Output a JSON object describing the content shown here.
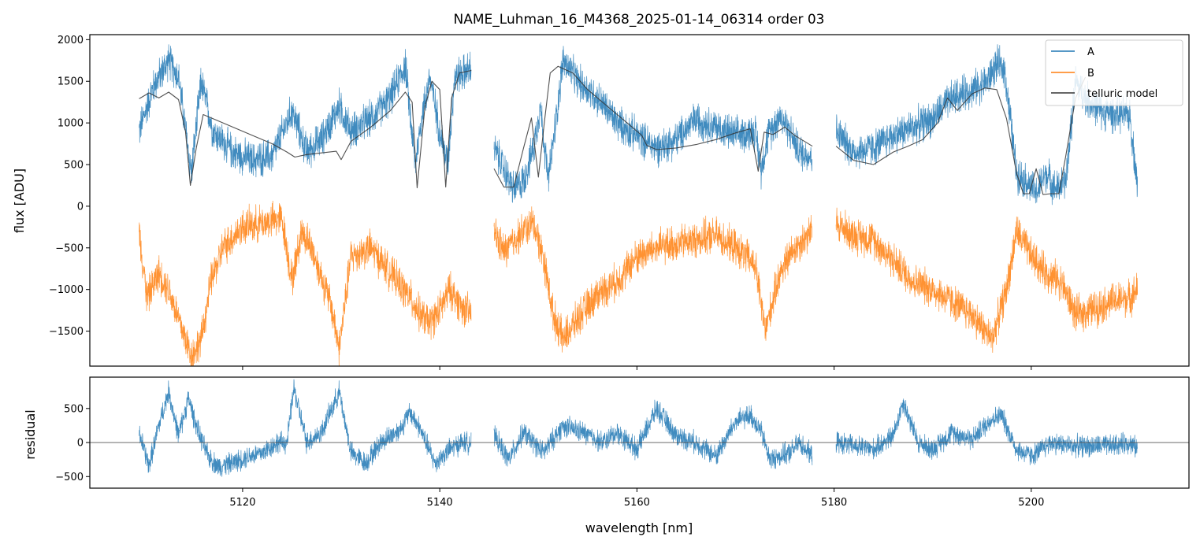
{
  "chart_data": {
    "type": "line",
    "title": "NAME_Luhman_16_M4368_2025-01-14_06314  order 03",
    "xlabel": "wavelength [nm]",
    "xlim": [
      5104.5,
      5216.0
    ],
    "x_ticks": [
      5120,
      5140,
      5160,
      5180,
      5200
    ],
    "segments": [
      [
        5109.5,
        5143.2
      ],
      [
        5145.5,
        5177.8
      ],
      [
        5180.2,
        5210.8
      ]
    ],
    "colors": {
      "A": "#1f77b4",
      "B": "#ff7f0e",
      "telluric": "#333333",
      "zero_line": "#555555"
    },
    "panels": [
      {
        "id": "flux",
        "ylabel": "flux [ADU]",
        "ylim": [
          -1920,
          2060
        ],
        "y_ticks": [
          -1500,
          -1000,
          -500,
          0,
          500,
          1000,
          1500,
          2000
        ],
        "legend": {
          "position": "top-right",
          "entries": [
            "A",
            "B",
            "telluric model"
          ]
        },
        "series": [
          {
            "name": "A",
            "x": [
              5109.5,
              5111,
              5112.5,
              5113.5,
              5114.8,
              5115.8,
              5117,
              5119,
              5121,
              5123,
              5125,
              5126.5,
              5128,
              5129.8,
              5131,
              5133,
              5135,
              5136.5,
              5137.5,
              5138.2,
              5139,
              5140,
              5140.8,
              5141.5,
              5142.3,
              5143.2,
              5145.5,
              5146.5,
              5147.5,
              5148.5,
              5149.5,
              5150.2,
              5151,
              5151.8,
              5152.5,
              5154,
              5156,
              5158,
              5160,
              5162,
              5164,
              5166,
              5168,
              5170,
              5172,
              5172.6,
              5173.3,
              5174.5,
              5175.5,
              5176.5,
              5177.8,
              5180.2,
              5182,
              5184,
              5186,
              5188,
              5190,
              5192,
              5194,
              5195.5,
              5196.5,
              5197.3,
              5198.5,
              5199.5,
              5200.5,
              5201.5,
              5202.5,
              5203.5,
              5204.5,
              5205.5,
              5207,
              5208.5,
              5210,
              5210.8
            ],
            "y": [
              900,
              1450,
              1750,
              1550,
              400,
              1500,
              900,
              650,
              550,
              600,
              1150,
              650,
              800,
              1200,
              900,
              1050,
              1300,
              1700,
              500,
              1100,
              1550,
              900,
              500,
              1550,
              1600,
              1650,
              700,
              450,
              200,
              300,
              700,
              1200,
              300,
              1050,
              1750,
              1500,
              1300,
              1000,
              850,
              700,
              800,
              1050,
              950,
              850,
              900,
              450,
              850,
              1100,
              900,
              650,
              600,
              900,
              650,
              700,
              850,
              950,
              1050,
              1300,
              1400,
              1500,
              1700,
              1650,
              400,
              300,
              150,
              400,
              200,
              300,
              1500,
              1300,
              1150,
              1100,
              1100,
              200
            ]
          },
          {
            "name": "B",
            "x": [
              5109.5,
              5110.3,
              5111.5,
              5112.5,
              5113.5,
              5114.8,
              5115.8,
              5116.8,
              5118,
              5120,
              5122,
              5124,
              5125,
              5126,
              5127,
              5129,
              5129.8,
              5131,
              5133,
              5135,
              5137,
              5138,
              5139,
              5140,
              5141,
              5142.2,
              5143.2,
              5145.5,
              5146.5,
              5148,
              5149.5,
              5150.5,
              5151.5,
              5152.5,
              5154,
              5156,
              5158,
              5160,
              5162,
              5164,
              5166,
              5168,
              5170,
              5172,
              5173,
              5174.5,
              5176,
              5177.8,
              5180.2,
              5182,
              5184,
              5186,
              5188,
              5190,
              5192,
              5194,
              5196,
              5197.5,
              5198.5,
              5200,
              5201.5,
              5203,
              5204.5,
              5206,
              5208,
              5210,
              5210.8
            ],
            "y": [
              -300,
              -1100,
              -800,
              -1000,
              -1350,
              -1800,
              -1600,
              -900,
              -500,
              -250,
              -200,
              -150,
              -900,
              -300,
              -500,
              -1200,
              -1700,
              -600,
              -500,
              -800,
              -1100,
              -1300,
              -1400,
              -1250,
              -1000,
              -1200,
              -1300,
              -300,
              -550,
              -350,
              -200,
              -600,
              -1300,
              -1600,
              -1350,
              -1050,
              -900,
              -600,
              -500,
              -450,
              -400,
              -350,
              -500,
              -700,
              -1500,
              -800,
              -500,
              -300,
              -200,
              -350,
              -400,
              -650,
              -900,
              -1000,
              -1150,
              -1300,
              -1600,
              -1000,
              -300,
              -600,
              -800,
              -900,
              -1300,
              -1250,
              -1150,
              -1100,
              -1000
            ]
          },
          {
            "name": "telluric model",
            "x": [
              5109.5,
              5110.5,
              5111.5,
              5112.5,
              5113.5,
              5114.2,
              5114.7,
              5115.3,
              5116,
              5117,
              5119,
              5121,
              5123,
              5124.5,
              5125.3,
              5126.5,
              5128,
              5129.5,
              5130,
              5131,
              5133,
              5135,
              5136.5,
              5137.2,
              5137.7,
              5138.5,
              5139.2,
              5140,
              5140.6,
              5141.2,
              5142,
              5143.2,
              5145.5,
              5146.5,
              5147.5,
              5148.5,
              5149.3,
              5150,
              5150.6,
              5151.2,
              5152,
              5153.5,
              5155,
              5157,
              5159,
              5160.5,
              5161,
              5162,
              5164,
              5166,
              5168,
              5170,
              5171.5,
              5172.3,
              5172.9,
              5173.8,
              5175,
              5176,
              5177.8,
              5180.2,
              5182,
              5184,
              5186,
              5187.5,
              5189,
              5190.5,
              5191.5,
              5192.5,
              5194,
              5195.3,
              5196.5,
              5197.5,
              5198.5,
              5199.2,
              5199.8,
              5200.5,
              5201.2,
              5202,
              5202.8,
              5203.5,
              5204.5,
              5205.5
            ],
            "y": [
              1290,
              1360,
              1300,
              1370,
              1280,
              900,
              250,
              700,
              1100,
              1050,
              950,
              850,
              750,
              650,
              590,
              620,
              640,
              660,
              560,
              780,
              950,
              1150,
              1370,
              1250,
              220,
              1200,
              1500,
              1400,
              230,
              1300,
              1600,
              1630,
              450,
              230,
              230,
              700,
              1060,
              350,
              1000,
              1600,
              1680,
              1600,
              1400,
              1200,
              1000,
              850,
              730,
              680,
              700,
              740,
              800,
              880,
              930,
              420,
              890,
              860,
              950,
              850,
              720,
              720,
              550,
              500,
              650,
              720,
              800,
              1000,
              1300,
              1150,
              1350,
              1420,
              1400,
              1050,
              400,
              150,
              150,
              450,
              140,
              150,
              150,
              600,
              1300,
              1550
            ]
          }
        ]
      },
      {
        "id": "residual",
        "ylabel": "residual",
        "ylim": [
          -670,
          960
        ],
        "y_ticks": [
          -500,
          0,
          500
        ],
        "zero_line": 0,
        "series": [
          {
            "name": "residual",
            "x": [
              5109.5,
              5110.5,
              5111.5,
              5112.5,
              5113.5,
              5114.5,
              5115.5,
              5116.5,
              5117.5,
              5119,
              5120.5,
              5122,
              5123.5,
              5124.5,
              5125.2,
              5126.5,
              5128,
              5129.8,
              5131,
              5132.5,
              5134,
              5136,
              5137,
              5138,
              5139.5,
              5141,
              5142.2,
              5143.2,
              5145.5,
              5147,
              5148.5,
              5150.5,
              5152.5,
              5154.5,
              5156.5,
              5158,
              5160,
              5162,
              5164,
              5166,
              5168,
              5170,
              5171.5,
              5172.5,
              5173.5,
              5175.5,
              5176.5,
              5177.8,
              5180.2,
              5182,
              5184,
              5186,
              5187,
              5188.5,
              5190,
              5192,
              5194,
              5196,
              5197,
              5198.5,
              5200,
              5202,
              5204,
              5206,
              5208,
              5210,
              5210.8
            ],
            "y": [
              150,
              -350,
              250,
              750,
              100,
              650,
              150,
              -200,
              -350,
              -300,
              -200,
              -150,
              0,
              0,
              800,
              0,
              150,
              750,
              -150,
              -300,
              0,
              200,
              450,
              200,
              -300,
              -100,
              0,
              0,
              100,
              -250,
              150,
              -150,
              250,
              150,
              0,
              150,
              -100,
              500,
              100,
              0,
              -200,
              300,
              400,
              200,
              -250,
              -150,
              0,
              -200,
              0,
              -50,
              -100,
              100,
              600,
              0,
              -100,
              150,
              50,
              350,
              400,
              -100,
              -200,
              0,
              -50,
              -50,
              -50,
              0,
              -100
            ]
          }
        ]
      }
    ]
  }
}
